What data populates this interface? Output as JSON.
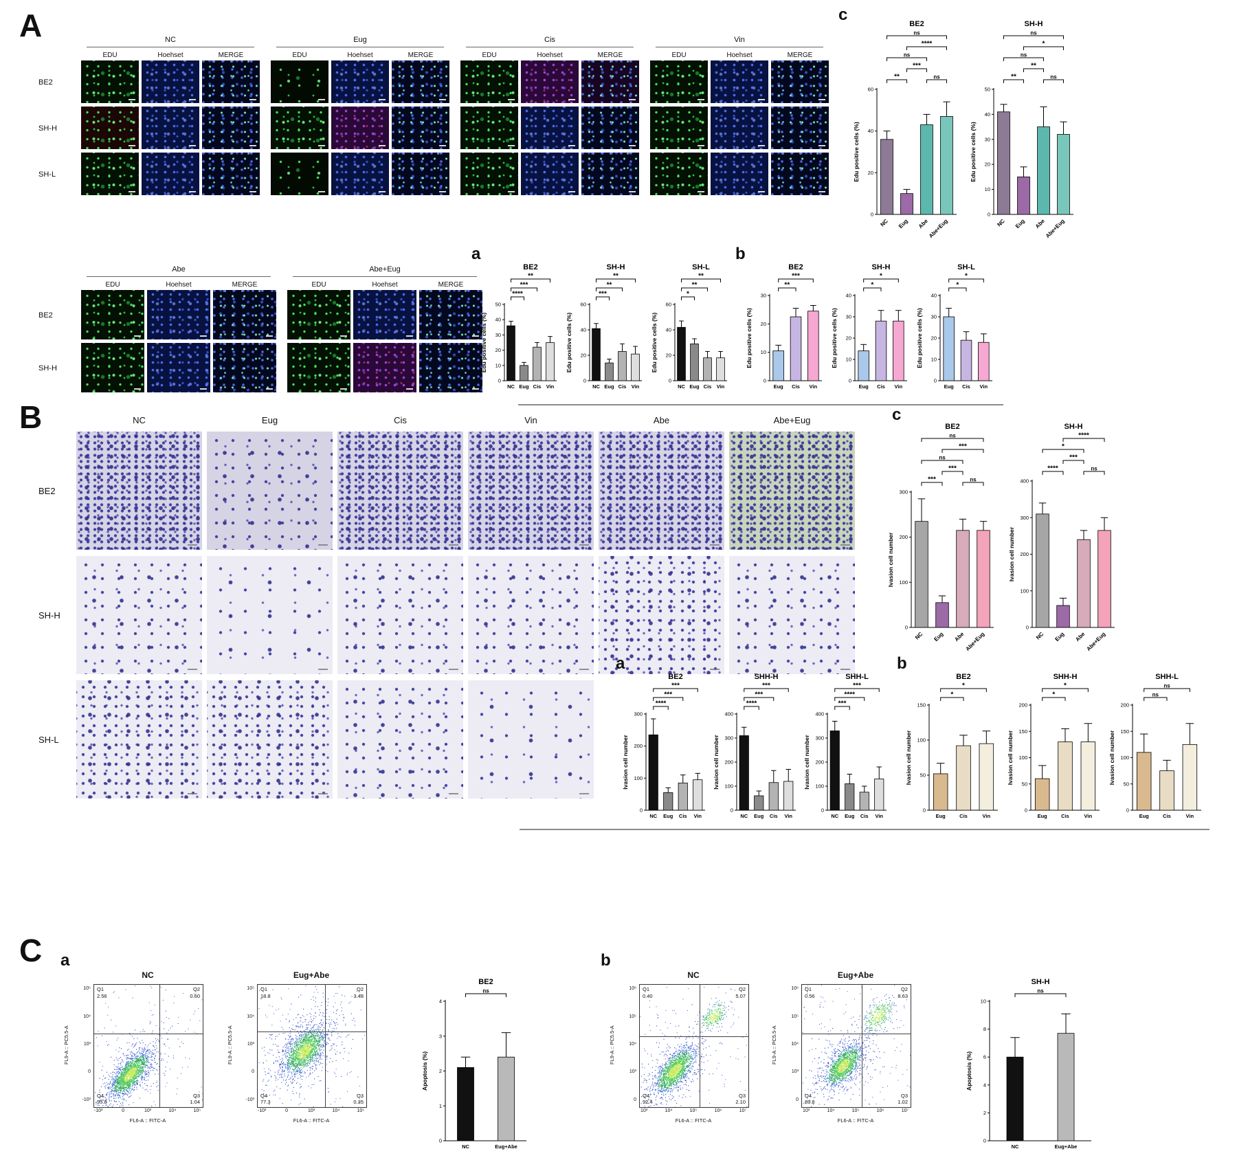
{
  "figure": {
    "panel_a": "A",
    "panel_b": "B",
    "panel_c": "C",
    "sub_a": "a",
    "sub_b": "b",
    "sub_c": "c"
  },
  "microscopy": {
    "channels": [
      "EDU",
      "Hoehset",
      "MERGE"
    ],
    "blocks": [
      {
        "id": "A-top",
        "groups": [
          "NC",
          "Eug",
          "Cis",
          "Vin"
        ],
        "rows": [
          "BE2",
          "SH-H",
          "SH-L"
        ]
      },
      {
        "id": "A-bottom",
        "groups": [
          "Abe",
          "Abe+Eug"
        ],
        "rows": [
          "BE2",
          "SH-H"
        ]
      }
    ],
    "variants": {
      "Eug|BE2|0": "sparse",
      "Eug|SH-L|0": "sparse",
      "NC|SH-H|0": "reddish",
      "Cis|BE2|1": "purple",
      "Cis|BE2|2": "redmix",
      "Eug|SH-H|1": "purple",
      "Abe+Eug|SH-H|1": "purple"
    }
  },
  "transwell": {
    "columns": [
      "NC",
      "Eug",
      "Cis",
      "Vin",
      "Abe",
      "Abe+Eug"
    ],
    "rows": [
      {
        "label": "BE2",
        "cells": [
          "d4 dark",
          "d2 dark",
          "d4 dark",
          "d4 dark",
          "d4 dark",
          "d4 green"
        ]
      },
      {
        "label": "SH-H",
        "cells": [
          "d2",
          "d1",
          "d2",
          "d2",
          "d3",
          "d2"
        ]
      },
      {
        "label": "SH-L",
        "cells": [
          "d3",
          "d3",
          "d2",
          "d1"
        ]
      }
    ]
  },
  "chart_data": {
    "A_a_BE2": {
      "type": "bar",
      "title": "BE2",
      "ylabel": "Edu positive cells (%)",
      "ylim": [
        0,
        50
      ],
      "yticks": [
        0,
        10,
        20,
        30,
        40,
        50
      ],
      "categories": [
        "NC",
        "Eug",
        "Cis",
        "Vin"
      ],
      "values": [
        36,
        10,
        22,
        25
      ],
      "errors": [
        3,
        2,
        3,
        4
      ],
      "colors": [
        "#111111",
        "#8a8a8a",
        "#b3b3b3",
        "#dedede"
      ],
      "sig": [
        [
          0,
          1,
          "****",
          0
        ],
        [
          0,
          2,
          "***",
          1
        ],
        [
          0,
          3,
          "**",
          2
        ]
      ]
    },
    "A_a_SHH": {
      "type": "bar",
      "title": "SH-H",
      "ylabel": "Edu positive cells (%)",
      "ylim": [
        0,
        60
      ],
      "yticks": [
        0,
        20,
        40,
        60
      ],
      "categories": [
        "NC",
        "Eug",
        "Cis",
        "Vin"
      ],
      "values": [
        41,
        14,
        23,
        21
      ],
      "errors": [
        4,
        3,
        6,
        6
      ],
      "colors": [
        "#111111",
        "#8a8a8a",
        "#b3b3b3",
        "#dedede"
      ],
      "sig": [
        [
          0,
          1,
          "***",
          0
        ],
        [
          0,
          2,
          "**",
          1
        ],
        [
          0,
          3,
          "**",
          2
        ]
      ]
    },
    "A_a_SHL": {
      "type": "bar",
      "title": "SH-L",
      "ylabel": "Edu positive cells (%)",
      "ylim": [
        0,
        60
      ],
      "yticks": [
        0,
        20,
        40,
        60
      ],
      "categories": [
        "NC",
        "Eug",
        "Cis",
        "Vin"
      ],
      "values": [
        42,
        29,
        18,
        18
      ],
      "errors": [
        5,
        4,
        5,
        5
      ],
      "colors": [
        "#111111",
        "#8a8a8a",
        "#b3b3b3",
        "#dedede"
      ],
      "sig": [
        [
          0,
          1,
          "*",
          0
        ],
        [
          0,
          2,
          "**",
          1
        ],
        [
          0,
          3,
          "**",
          2
        ]
      ]
    },
    "A_b_BE2": {
      "type": "bar",
      "title": "BE2",
      "ylabel": "Edu positive cells (%)",
      "ylim": [
        0,
        30
      ],
      "yticks": [
        0,
        10,
        20,
        30
      ],
      "categories": [
        "Eug",
        "Cis",
        "Vin"
      ],
      "values": [
        10.5,
        22.5,
        24.5
      ],
      "errors": [
        2,
        3,
        2
      ],
      "colors": [
        "#a9c8ea",
        "#c7b6e2",
        "#f6a8d2"
      ],
      "sig": [
        [
          0,
          1,
          "**",
          0
        ],
        [
          0,
          2,
          "***",
          1
        ]
      ]
    },
    "A_b_SHH": {
      "type": "bar",
      "title": "SH-H",
      "ylabel": "Edu positive cells (%)",
      "ylim": [
        0,
        40
      ],
      "yticks": [
        0,
        10,
        20,
        30,
        40
      ],
      "categories": [
        "Eug",
        "Cis",
        "Vin"
      ],
      "values": [
        14,
        28,
        28
      ],
      "errors": [
        3,
        5,
        5
      ],
      "colors": [
        "#a9c8ea",
        "#c7b6e2",
        "#f6a8d2"
      ],
      "sig": [
        [
          0,
          1,
          "*",
          0
        ],
        [
          0,
          2,
          "*",
          1
        ]
      ]
    },
    "A_b_SHL": {
      "type": "bar",
      "title": "SH-L",
      "ylabel": "Edu positive cells (%)",
      "ylim": [
        0,
        40
      ],
      "yticks": [
        0,
        10,
        20,
        30,
        40
      ],
      "categories": [
        "Eug",
        "Cis",
        "Vin"
      ],
      "values": [
        30,
        19,
        18
      ],
      "errors": [
        4,
        4,
        4
      ],
      "colors": [
        "#a9c8ea",
        "#c7b6e2",
        "#f6a8d2"
      ],
      "sig": [
        [
          0,
          1,
          "*",
          0
        ],
        [
          0,
          2,
          "*",
          1
        ]
      ]
    },
    "A_c_BE2": {
      "type": "bar",
      "title": "BE2",
      "ylabel": "Edu positive cells (%)",
      "rot": true,
      "ylim": [
        0,
        60
      ],
      "yticks": [
        0,
        20,
        40,
        60
      ],
      "categories": [
        "NC",
        "Eug",
        "Abe",
        "Abe+Eug"
      ],
      "values": [
        36,
        10,
        43,
        47
      ],
      "errors": [
        4,
        2,
        5,
        7
      ],
      "colors": [
        "#8d7b96",
        "#9c6aa6",
        "#5cb8ad",
        "#79c6ba"
      ],
      "sig": [
        [
          0,
          1,
          "**",
          0
        ],
        [
          2,
          3,
          "ns",
          0
        ],
        [
          1,
          2,
          "***",
          1
        ],
        [
          0,
          2,
          "ns",
          2
        ],
        [
          1,
          3,
          "****",
          3
        ],
        [
          0,
          3,
          "ns",
          4
        ]
      ]
    },
    "A_c_SHH": {
      "type": "bar",
      "title": "SH-H",
      "ylabel": "Edu positive cells (%)",
      "rot": true,
      "ylim": [
        0,
        50
      ],
      "yticks": [
        0,
        10,
        20,
        30,
        40,
        50
      ],
      "categories": [
        "NC",
        "Eug",
        "Abe",
        "Abe+Eug"
      ],
      "values": [
        41,
        15,
        35,
        32
      ],
      "errors": [
        3,
        4,
        8,
        5
      ],
      "colors": [
        "#8d7b96",
        "#9c6aa6",
        "#5cb8ad",
        "#79c6ba"
      ],
      "sig": [
        [
          0,
          1,
          "**",
          0
        ],
        [
          2,
          3,
          "ns",
          0
        ],
        [
          1,
          2,
          "**",
          1
        ],
        [
          0,
          2,
          "ns",
          2
        ],
        [
          1,
          3,
          "*",
          3
        ],
        [
          0,
          3,
          "ns",
          4
        ]
      ]
    },
    "B_a_BE2": {
      "type": "bar",
      "title": "BE2",
      "ylabel": "Ivasion cell number",
      "ylim": [
        0,
        300
      ],
      "yticks": [
        0,
        100,
        200,
        300
      ],
      "categories": [
        "NC",
        "Eug",
        "Cis",
        "Vin"
      ],
      "values": [
        235,
        55,
        85,
        95
      ],
      "errors": [
        50,
        15,
        25,
        20
      ],
      "colors": [
        "#111111",
        "#8a8a8a",
        "#b3b3b3",
        "#dedede"
      ],
      "sig": [
        [
          0,
          1,
          "****",
          0
        ],
        [
          0,
          2,
          "***",
          1
        ],
        [
          0,
          3,
          "***",
          2
        ]
      ]
    },
    "B_a_SHHH": {
      "type": "bar",
      "title": "SHH-H",
      "ylabel": "Ivasion cell number",
      "ylim": [
        0,
        400
      ],
      "yticks": [
        0,
        100,
        200,
        300,
        400
      ],
      "categories": [
        "NC",
        "Eug",
        "Cis",
        "Vin"
      ],
      "values": [
        310,
        60,
        115,
        120
      ],
      "errors": [
        35,
        20,
        50,
        50
      ],
      "colors": [
        "#111111",
        "#8a8a8a",
        "#b3b3b3",
        "#dedede"
      ],
      "sig": [
        [
          0,
          1,
          "****",
          0
        ],
        [
          0,
          2,
          "***",
          1
        ],
        [
          0,
          3,
          "***",
          2
        ]
      ]
    },
    "B_a_SHHL": {
      "type": "bar",
      "title": "SHH-L",
      "ylabel": "Ivasion cell number",
      "ylim": [
        0,
        400
      ],
      "yticks": [
        0,
        100,
        200,
        300,
        400
      ],
      "categories": [
        "NC",
        "Eug",
        "Cis",
        "Vin"
      ],
      "values": [
        330,
        110,
        75,
        130
      ],
      "errors": [
        40,
        40,
        25,
        50
      ],
      "colors": [
        "#111111",
        "#8a8a8a",
        "#b3b3b3",
        "#dedede"
      ],
      "sig": [
        [
          0,
          1,
          "***",
          0
        ],
        [
          0,
          2,
          "****",
          1
        ],
        [
          0,
          3,
          "***",
          2
        ]
      ]
    },
    "B_b_BE2": {
      "type": "bar",
      "title": "BE2",
      "ylabel": "Ivasion cell number",
      "ylim": [
        0,
        150
      ],
      "yticks": [
        0,
        50,
        100,
        150
      ],
      "categories": [
        "Eug",
        "Cis",
        "Vin"
      ],
      "values": [
        52,
        92,
        95
      ],
      "errors": [
        15,
        15,
        18
      ],
      "colors": [
        "#d9b98e",
        "#e8ddc4",
        "#f3eede"
      ],
      "sig": [
        [
          0,
          1,
          "*",
          0
        ],
        [
          0,
          2,
          "*",
          1
        ]
      ]
    },
    "B_b_SHHH": {
      "type": "bar",
      "title": "SHH-H",
      "ylabel": "Ivasion cell number",
      "ylim": [
        0,
        200
      ],
      "yticks": [
        0,
        50,
        100,
        150,
        200
      ],
      "categories": [
        "Eug",
        "Cis",
        "Vin"
      ],
      "values": [
        60,
        130,
        130
      ],
      "errors": [
        25,
        25,
        35
      ],
      "colors": [
        "#d9b98e",
        "#e8ddc4",
        "#f3eede"
      ],
      "sig": [
        [
          0,
          1,
          "*",
          0
        ],
        [
          0,
          2,
          "*",
          1
        ]
      ]
    },
    "B_b_SHHL": {
      "type": "bar",
      "title": "SHH-L",
      "ylabel": "Ivasion cell number",
      "ylim": [
        0,
        200
      ],
      "yticks": [
        0,
        50,
        100,
        150,
        200
      ],
      "categories": [
        "Eug",
        "Cis",
        "Vin"
      ],
      "values": [
        110,
        75,
        125
      ],
      "errors": [
        35,
        20,
        40
      ],
      "colors": [
        "#d9b98e",
        "#e8ddc4",
        "#f3eede"
      ],
      "sig": [
        [
          0,
          1,
          "ns",
          0
        ],
        [
          0,
          2,
          "ns",
          1
        ]
      ]
    },
    "B_c_BE2": {
      "type": "bar",
      "title": "BE2",
      "ylabel": "Ivasion cell number",
      "rot": true,
      "ylim": [
        0,
        300
      ],
      "yticks": [
        0,
        100,
        200,
        300
      ],
      "categories": [
        "NC",
        "Eug",
        "Abe",
        "Abe+Eug"
      ],
      "values": [
        235,
        55,
        215,
        215
      ],
      "errors": [
        50,
        15,
        25,
        20
      ],
      "colors": [
        "#a6a6a6",
        "#9c6aa6",
        "#d7abb9",
        "#f3a3ba"
      ],
      "sig": [
        [
          0,
          1,
          "***",
          0
        ],
        [
          2,
          3,
          "ns",
          0
        ],
        [
          1,
          2,
          "***",
          1
        ],
        [
          0,
          2,
          "ns",
          2
        ],
        [
          1,
          3,
          "***",
          3
        ],
        [
          0,
          3,
          "ns",
          4
        ]
      ]
    },
    "B_c_SHH": {
      "type": "bar",
      "title": "SH-H",
      "ylabel": "Ivasion cell number",
      "rot": true,
      "ylim": [
        0,
        400
      ],
      "yticks": [
        0,
        100,
        200,
        300,
        400
      ],
      "categories": [
        "NC",
        "Eug",
        "Abe",
        "Abe+Eug"
      ],
      "values": [
        310,
        60,
        240,
        265
      ],
      "errors": [
        30,
        20,
        25,
        35
      ],
      "colors": [
        "#a6a6a6",
        "#9c6aa6",
        "#d7abb9",
        "#f3a3ba"
      ],
      "sig": [
        [
          0,
          1,
          "****",
          0
        ],
        [
          2,
          3,
          "ns",
          0
        ],
        [
          1,
          2,
          "***",
          1
        ],
        [
          0,
          2,
          "*",
          2
        ],
        [
          1,
          3,
          "****",
          3
        ]
      ]
    },
    "C_a_BE2": {
      "type": "bar",
      "title": "BE2",
      "ylabel": "Apoptosis  (%)",
      "ylim": [
        0,
        4
      ],
      "yticks": [
        0,
        1,
        2,
        3,
        4
      ],
      "categories": [
        "NC",
        "Eug+Abe"
      ],
      "values": [
        2.1,
        2.4
      ],
      "errors": [
        0.3,
        0.7
      ],
      "colors": [
        "#111111",
        "#b9b9b9"
      ],
      "sig": [
        [
          0,
          1,
          "ns",
          0
        ]
      ]
    },
    "C_b_SHH": {
      "type": "bar",
      "title": "SH-H",
      "ylabel": "Apoptosis  (%)",
      "ylim": [
        0,
        10
      ],
      "yticks": [
        0,
        2,
        4,
        6,
        8,
        10
      ],
      "categories": [
        "NC",
        "Eug+Abe"
      ],
      "values": [
        6,
        7.7
      ],
      "errors": [
        1.4,
        1.4
      ],
      "colors": [
        "#111111",
        "#b9b9b9"
      ],
      "sig": [
        [
          0,
          1,
          "ns",
          0
        ]
      ]
    }
  },
  "flow": {
    "xlabel": "FL6-A :: FITC-A",
    "ylabel": "FL9-A :: PC5.5-A",
    "plots": [
      {
        "id": "F_a_NC",
        "title": "NC",
        "quadrants": {
          "Q1": "2.56",
          "Q2": "0.60",
          "Q3": "1.04",
          "Q4": "95.8"
        },
        "xticks": [
          "-10³",
          "0",
          "10³",
          "10⁴",
          "10⁵"
        ],
        "yticks": [
          "-10³",
          "0",
          "10³",
          "10⁴",
          "10⁵"
        ],
        "gate": [
          0.6,
          0.4
        ],
        "clusters": [
          [
            0.33,
            0.73,
            0.2,
            0.1,
            520,
            1
          ],
          [
            0.33,
            0.73,
            0.11,
            0.045,
            1600,
            0
          ]
        ],
        "noise": 120,
        "seed": 7
      },
      {
        "id": "F_a_EA",
        "title": "Eug+Abe",
        "quadrants": {
          "Q1": "18.8",
          "Q2": "3.48",
          "Q3": "0.35",
          "Q4": "77.3"
        },
        "xticks": [
          "-10³",
          "0",
          "10³",
          "10⁴",
          "10⁵"
        ],
        "yticks": [
          "-10³",
          "0",
          "10³",
          "10⁴",
          "10⁵"
        ],
        "gate": [
          0.62,
          0.38
        ],
        "clusters": [
          [
            0.42,
            0.52,
            0.22,
            0.13,
            600,
            1
          ],
          [
            0.43,
            0.54,
            0.11,
            0.06,
            1500,
            0
          ]
        ],
        "noise": 150,
        "seed": 11
      },
      {
        "id": "F_b_NC",
        "title": "NC",
        "quadrants": {
          "Q1": "0.40",
          "Q2": "5.07",
          "Q3": "2.10",
          "Q4": "92.4"
        },
        "xticks": [
          "10³",
          "10⁴",
          "10⁵",
          "10⁶",
          "10⁷"
        ],
        "yticks": [
          "0",
          "10³",
          "10⁴",
          "10⁵",
          "10⁶"
        ],
        "gate": [
          0.55,
          0.42
        ],
        "clusters": [
          [
            0.32,
            0.7,
            0.2,
            0.11,
            420,
            1
          ],
          [
            0.32,
            0.7,
            0.11,
            0.05,
            1500,
            0
          ],
          [
            0.68,
            0.26,
            0.07,
            0.04,
            260,
            0
          ]
        ],
        "noise": 120,
        "seed": 21
      },
      {
        "id": "F_b_EA",
        "title": "Eug+Abe",
        "quadrants": {
          "Q1": "0.56",
          "Q2": "8.63",
          "Q3": "1.02",
          "Q4": "89.8"
        },
        "xticks": [
          "10³",
          "10⁴",
          "10⁵",
          "10⁶",
          "10⁷"
        ],
        "yticks": [
          "0",
          "10³",
          "10⁴",
          "10⁵",
          "10⁶"
        ],
        "gate": [
          0.55,
          0.4
        ],
        "clusters": [
          [
            0.38,
            0.64,
            0.19,
            0.11,
            420,
            1
          ],
          [
            0.38,
            0.66,
            0.1,
            0.05,
            1300,
            0
          ],
          [
            0.7,
            0.25,
            0.08,
            0.05,
            320,
            0
          ]
        ],
        "noise": 130,
        "seed": 33
      }
    ]
  }
}
